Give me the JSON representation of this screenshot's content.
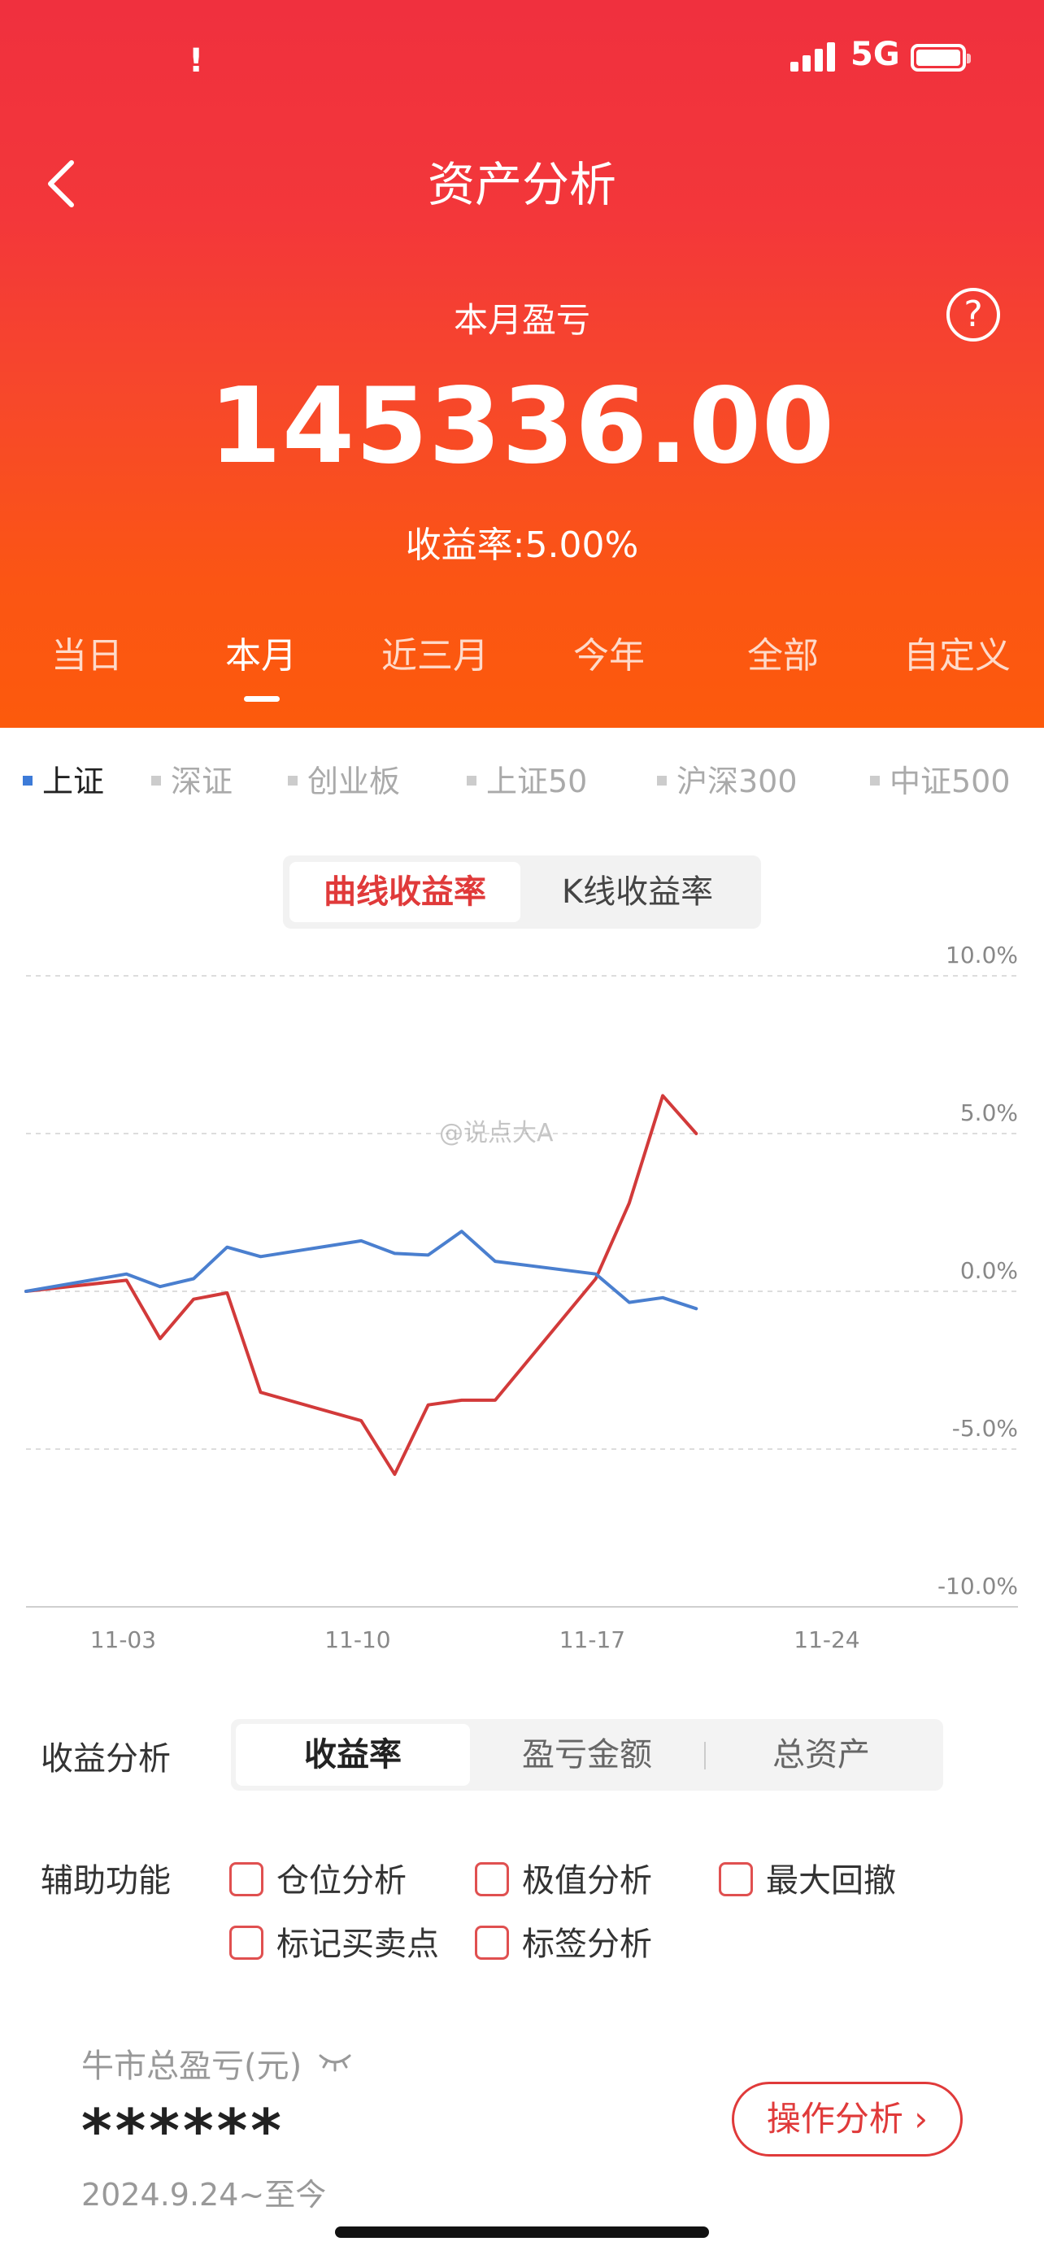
{
  "status_bar": {
    "left_glyph": "!",
    "network": "5G",
    "battery_icon": "battery-icon",
    "signal_icon": "signal-icon"
  },
  "nav": {
    "title": "资产分析",
    "back_icon": "chevron-left-icon"
  },
  "summary": {
    "label": "本月盈亏",
    "value": "145336.00",
    "rate_text": "收益率:5.00%",
    "help_glyph": "?"
  },
  "period_tabs": [
    {
      "label": "当日"
    },
    {
      "label": "本月",
      "active": true
    },
    {
      "label": "近三月"
    },
    {
      "label": "今年"
    },
    {
      "label": "全部"
    },
    {
      "label": "自定义"
    }
  ],
  "indices": [
    {
      "label": "上证",
      "active": true
    },
    {
      "label": "深证"
    },
    {
      "label": "创业板"
    },
    {
      "label": "上证50"
    },
    {
      "label": "沪深300"
    },
    {
      "label": "中证500"
    }
  ],
  "chart_tabs": {
    "curve": "曲线收益率",
    "kline": "K线收益率"
  },
  "watermark": "@说点大A",
  "chart_data": {
    "type": "line",
    "y_ticks": [
      "10.0%",
      "5.0%",
      "0.0%",
      "-5.0%",
      "-10.0%"
    ],
    "ylim": [
      -10,
      10
    ],
    "x_tick_labels": [
      "11-03",
      "11-10",
      "11-17",
      "11-24"
    ],
    "x_ticks_day": [
      3,
      10,
      17,
      24
    ],
    "xlim_day": [
      0.2,
      29.8
    ],
    "grid": true,
    "series": [
      {
        "color": "#d23a3a",
        "points": [
          [
            0.2,
            0.0
          ],
          [
            3.2,
            0.35
          ],
          [
            4.2,
            -1.5
          ],
          [
            5.2,
            -0.25
          ],
          [
            6.2,
            -0.05
          ],
          [
            7.2,
            -3.2
          ],
          [
            10.2,
            -4.1
          ],
          [
            11.2,
            -5.8
          ],
          [
            12.2,
            -3.6
          ],
          [
            13.2,
            -3.45
          ],
          [
            14.2,
            -3.45
          ],
          [
            17.2,
            0.4
          ],
          [
            18.2,
            2.8
          ],
          [
            19.2,
            6.2
          ],
          [
            20.2,
            5.0
          ]
        ]
      },
      {
        "color": "#4a7fcf",
        "points": [
          [
            0.2,
            0.0
          ],
          [
            3.2,
            0.55
          ],
          [
            4.2,
            0.15
          ],
          [
            5.2,
            0.4
          ],
          [
            6.2,
            1.4
          ],
          [
            7.2,
            1.1
          ],
          [
            10.2,
            1.6
          ],
          [
            11.2,
            1.2
          ],
          [
            12.2,
            1.15
          ],
          [
            13.2,
            1.9
          ],
          [
            14.2,
            0.95
          ],
          [
            17.2,
            0.55
          ],
          [
            18.2,
            -0.35
          ],
          [
            19.2,
            -0.2
          ],
          [
            20.2,
            -0.55
          ]
        ]
      }
    ]
  },
  "analysis": {
    "label": "收益分析",
    "tabs": [
      "收益率",
      "盈亏金额",
      "总资产"
    ]
  },
  "auxiliary": {
    "label": "辅助功能",
    "items": [
      "仓位分析",
      "极值分析",
      "最大回撤",
      "标记买卖点",
      "标签分析"
    ]
  },
  "bull": {
    "title": "牛市总盈亏(元)",
    "value": "******",
    "range": "2024.9.24~至今",
    "button": "操作分析 ›"
  }
}
